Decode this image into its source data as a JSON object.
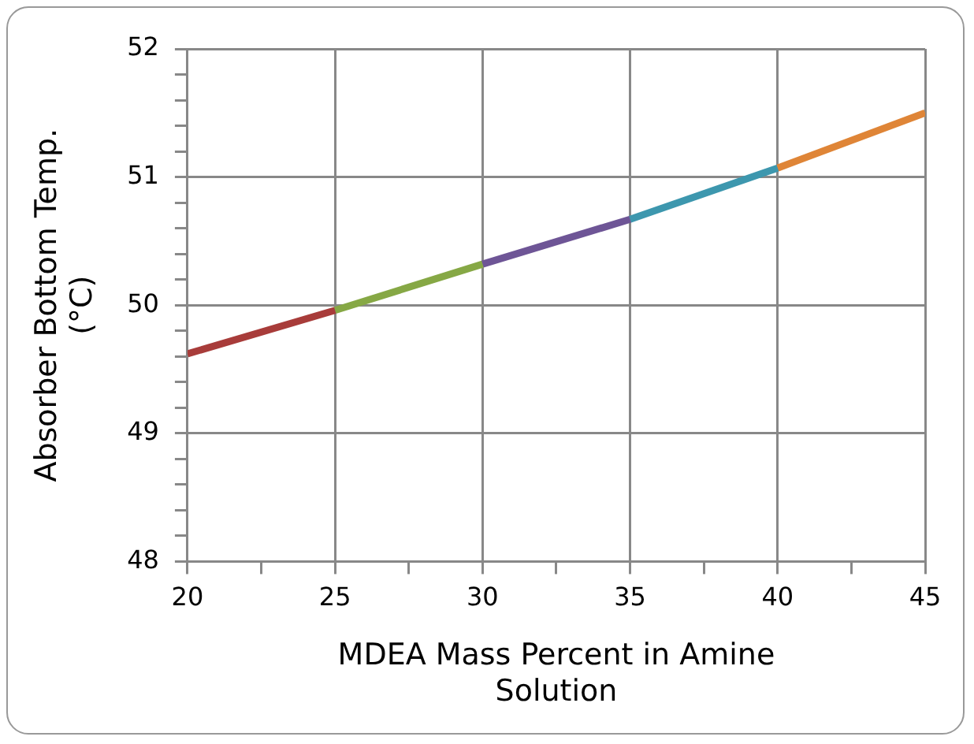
{
  "chart_data": {
    "type": "line",
    "xlabel": "MDEA Mass Percent in Amine\nSolution",
    "ylabel": "Absorber Bottom Temp.\n(°C)",
    "xlim": [
      20,
      45
    ],
    "xticks": [
      20,
      {
        "value": 22.5,
        "label": null
      },
      25,
      {
        "value": 27.5,
        "label": null
      },
      30,
      {
        "value": 32.5,
        "label": null
      },
      35,
      {
        "value": 37.5,
        "label": null
      },
      40,
      {
        "value": 42.5,
        "label": null
      },
      45
    ],
    "ylim": [
      48,
      52
    ],
    "yticks": [
      48,
      {
        "value": 48.2,
        "label": null
      },
      {
        "value": 48.4,
        "label": null
      },
      {
        "value": 48.6,
        "label": null
      },
      {
        "value": 48.8,
        "label": null
      },
      49,
      {
        "value": 49.2,
        "label": null
      },
      {
        "value": 49.4,
        "label": null
      },
      {
        "value": 49.6,
        "label": null
      },
      {
        "value": 49.8,
        "label": null
      },
      50,
      {
        "value": 50.2,
        "label": null
      },
      {
        "value": 50.4,
        "label": null
      },
      {
        "value": 50.6,
        "label": null
      },
      {
        "value": 50.8,
        "label": null
      },
      51,
      {
        "value": 51.2,
        "label": null
      },
      {
        "value": 51.4,
        "label": null
      },
      {
        "value": 51.6,
        "label": null
      },
      {
        "value": 51.8,
        "label": null
      },
      52
    ],
    "grid": true,
    "legend": false,
    "marker": "none",
    "line_style": "solid",
    "series": [
      {
        "color": "#a83c3a",
        "x": [
          20,
          25
        ],
        "values": [
          49.62,
          49.96
        ]
      },
      {
        "color": "#86a845",
        "x": [
          25,
          30
        ],
        "values": [
          49.96,
          50.32
        ]
      },
      {
        "color": "#6e5596",
        "x": [
          30,
          35
        ],
        "values": [
          50.32,
          50.67
        ]
      },
      {
        "color": "#3d97ae",
        "x": [
          35,
          40
        ],
        "values": [
          50.67,
          51.07
        ]
      },
      {
        "color": "#df8537",
        "x": [
          40,
          45
        ],
        "values": [
          51.07,
          51.5
        ]
      }
    ]
  }
}
